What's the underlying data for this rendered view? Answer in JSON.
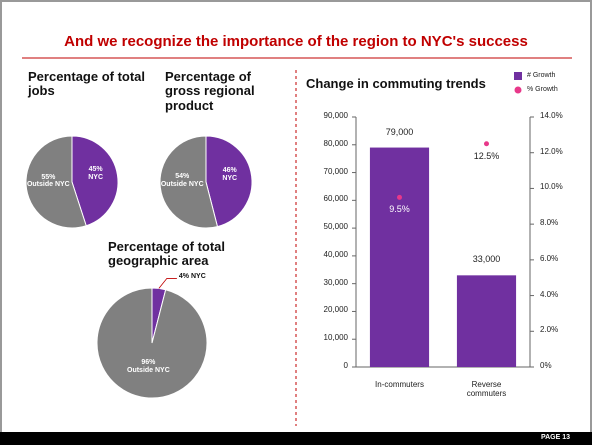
{
  "title": "And we recognize the importance of the region to NYC's success",
  "page": "PAGE 13",
  "chart_data": [
    {
      "type": "pie",
      "title": "Percentage of total jobs",
      "categories": [
        "NYC",
        "Outside NYC"
      ],
      "values": [
        45,
        55
      ],
      "value_labels": [
        "45%",
        "55%"
      ],
      "colors": [
        "#7030a0",
        "#808080"
      ]
    },
    {
      "type": "pie",
      "title": "Percentage of gross regional product",
      "categories": [
        "NYC",
        "Outside NYC"
      ],
      "values": [
        46,
        54
      ],
      "value_labels": [
        "46%",
        "54%"
      ],
      "colors": [
        "#7030a0",
        "#808080"
      ]
    },
    {
      "type": "pie",
      "title": "Percentage of total geographic area",
      "categories": [
        "NYC",
        "Outside NYC"
      ],
      "values": [
        4,
        96
      ],
      "value_labels": [
        "4%",
        "96%"
      ],
      "colors": [
        "#7030a0",
        "#808080"
      ]
    },
    {
      "type": "bar",
      "title": "Change in commuting trends",
      "categories": [
        "In-commuters",
        "Reverse commuters"
      ],
      "series": [
        {
          "name": "# Growth",
          "color": "#7030a0",
          "values": [
            79000,
            33000
          ],
          "value_labels": [
            "79,000",
            "33,000"
          ]
        },
        {
          "name": "% Growth",
          "color": "#e8388a",
          "axis": "y2",
          "values": [
            9.5,
            12.5
          ],
          "value_labels": [
            "9.5%",
            "12.5%"
          ]
        }
      ],
      "ylim": [
        0,
        90000
      ],
      "yticks": [
        0,
        {
          "value": 10000,
          "label": "10,000"
        },
        {
          "value": 20000,
          "label": "20,000"
        },
        {
          "value": 30000,
          "label": "30,000"
        },
        {
          "value": 40000,
          "label": "40,000"
        },
        {
          "value": 50000,
          "label": "50,000"
        },
        {
          "value": 60000,
          "label": "60,000"
        },
        {
          "value": 70000,
          "label": "70,000"
        },
        {
          "value": 80000,
          "label": "80,000"
        },
        {
          "value": 90000,
          "label": "90,000"
        }
      ],
      "y2lim": [
        0,
        14
      ],
      "y2ticks": [
        {
          "value": 0,
          "label": "0%"
        },
        {
          "value": 2,
          "label": "2.0%"
        },
        {
          "value": 4,
          "label": "4.0%"
        },
        {
          "value": 6,
          "label": "6.0%"
        },
        {
          "value": 8,
          "label": "8.0%"
        },
        {
          "value": 10,
          "label": "10.0%"
        },
        {
          "value": 12,
          "label": "12.0%"
        },
        {
          "value": 14,
          "label": "14.0%"
        }
      ]
    }
  ]
}
